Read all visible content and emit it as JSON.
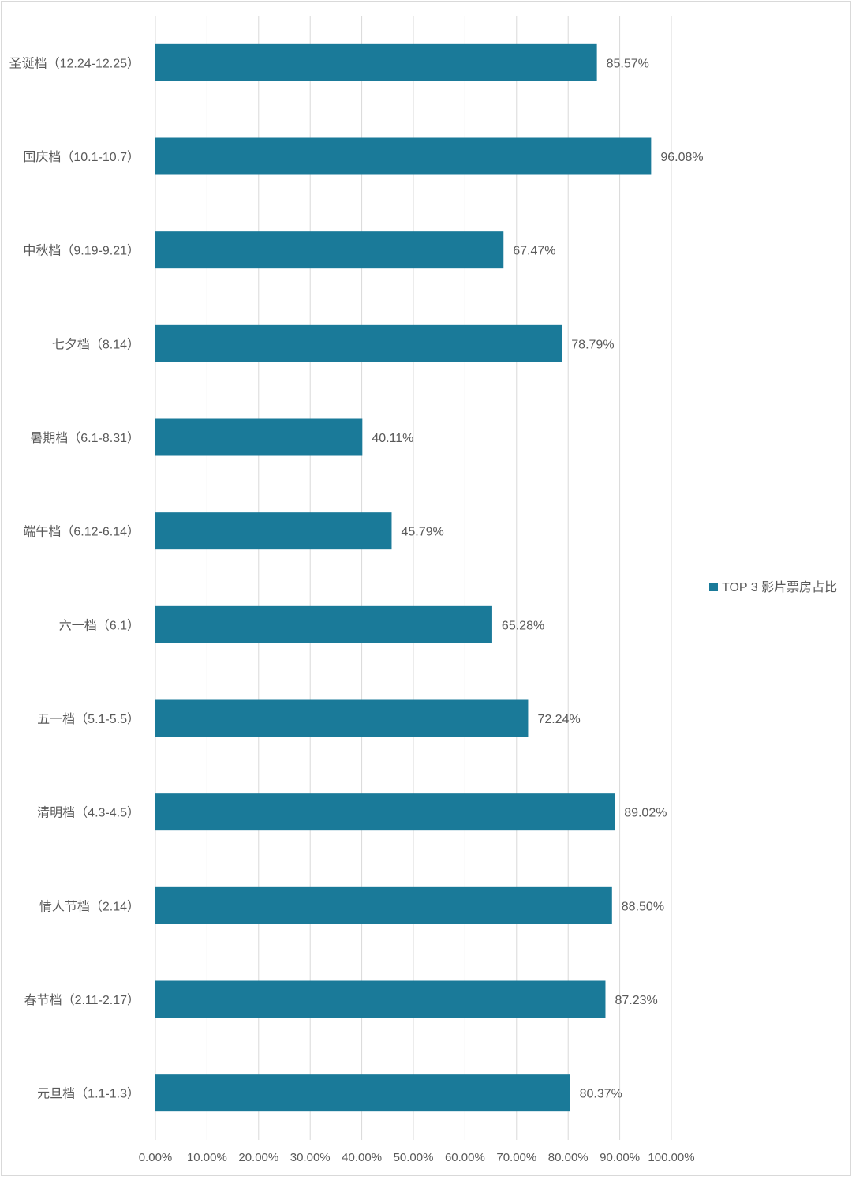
{
  "chart_data": {
    "type": "bar",
    "orientation": "horizontal",
    "categories": [
      "圣诞档（12.24-12.25）",
      "国庆档（10.1-10.7）",
      "中秋档（9.19-9.21）",
      "七夕档（8.14）",
      "暑期档（6.1-8.31）",
      "端午档（6.12-6.14）",
      "六一档（6.1）",
      "五一档（5.1-5.5）",
      "清明档（4.3-4.5）",
      "情人节档（2.14）",
      "春节档（2.11-2.17）",
      "元旦档（1.1-1.3）"
    ],
    "series": [
      {
        "name": "TOP 3 影片票房占比",
        "values": [
          85.57,
          96.08,
          67.47,
          78.79,
          40.11,
          45.79,
          65.28,
          72.24,
          89.02,
          88.5,
          87.23,
          80.37
        ],
        "labels": [
          "85.57%",
          "96.08%",
          "67.47%",
          "78.79%",
          "40.11%",
          "45.79%",
          "65.28%",
          "72.24%",
          "89.02%",
          "88.50%",
          "87.23%",
          "80.37%"
        ],
        "color": "#1a7a99"
      }
    ],
    "xlim": [
      0,
      100
    ],
    "xticks": [
      0,
      10,
      20,
      30,
      40,
      50,
      60,
      70,
      80,
      90,
      100
    ],
    "xtick_labels": [
      "0.00%",
      "10.00%",
      "20.00%",
      "30.00%",
      "40.00%",
      "50.00%",
      "60.00%",
      "70.00%",
      "80.00%",
      "90.00%",
      "100.00%"
    ],
    "grid": true,
    "legend_position": "right",
    "colors": {
      "bar": "#1a7a99",
      "grid": "#d9d9d9",
      "text": "#595959"
    }
  }
}
